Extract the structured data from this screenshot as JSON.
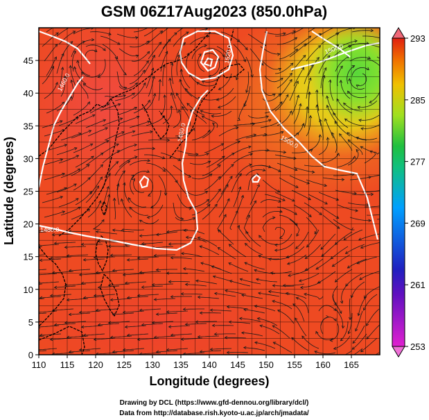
{
  "title": "GSM 06Z17Aug2023 (850.0hPa)",
  "chart_data": {
    "type": "heatmap",
    "map_region": "Northwest Pacific / East Asia",
    "x": {
      "label": "Longitude (degrees)",
      "range": [
        110,
        170
      ],
      "ticks": [
        110,
        115,
        120,
        125,
        130,
        135,
        140,
        145,
        150,
        155,
        160,
        165
      ]
    },
    "y": {
      "label": "Latitude  (degrees)",
      "range": [
        0,
        50
      ],
      "ticks": [
        0,
        5,
        10,
        15,
        20,
        25,
        30,
        35,
        40,
        45
      ]
    },
    "grid": true,
    "colorbar": {
      "placement": "right",
      "range": [
        253,
        293
      ],
      "tick_values": [
        253,
        261,
        269,
        277,
        285,
        293
      ],
      "colors": [
        "#e020d0",
        "#2020c0",
        "#00a0ff",
        "#10c060",
        "#a0e020",
        "#f0c000",
        "#f07000",
        "#e02010"
      ]
    },
    "temperature_field": [
      {
        "lon": 110,
        "lat": 45,
        "value": 289
      },
      {
        "lon": 140,
        "lat": 45,
        "value": 289
      },
      {
        "lon": 162,
        "lat": 44,
        "value": 279
      },
      {
        "lon": 165,
        "lat": 38,
        "value": 281
      },
      {
        "lon": 150,
        "lat": 20,
        "value": 291
      },
      {
        "lon": 125,
        "lat": 30,
        "value": 292
      },
      {
        "lon": 130,
        "lat": 5,
        "value": 291
      }
    ],
    "contour_labels": [
      "1460.0",
      "1480.0",
      "1480.0",
      "1500.0",
      "1500.0",
      "1520.0"
    ],
    "vector_field": "wind streamlines",
    "coastlines": true
  },
  "credits": {
    "line1": "Drawing by DCL (https://www.gfd-dennou.org/library/dcl/)",
    "line2": "Data from http://database.rish.kyoto-u.ac.jp/arch/jmadata/"
  }
}
